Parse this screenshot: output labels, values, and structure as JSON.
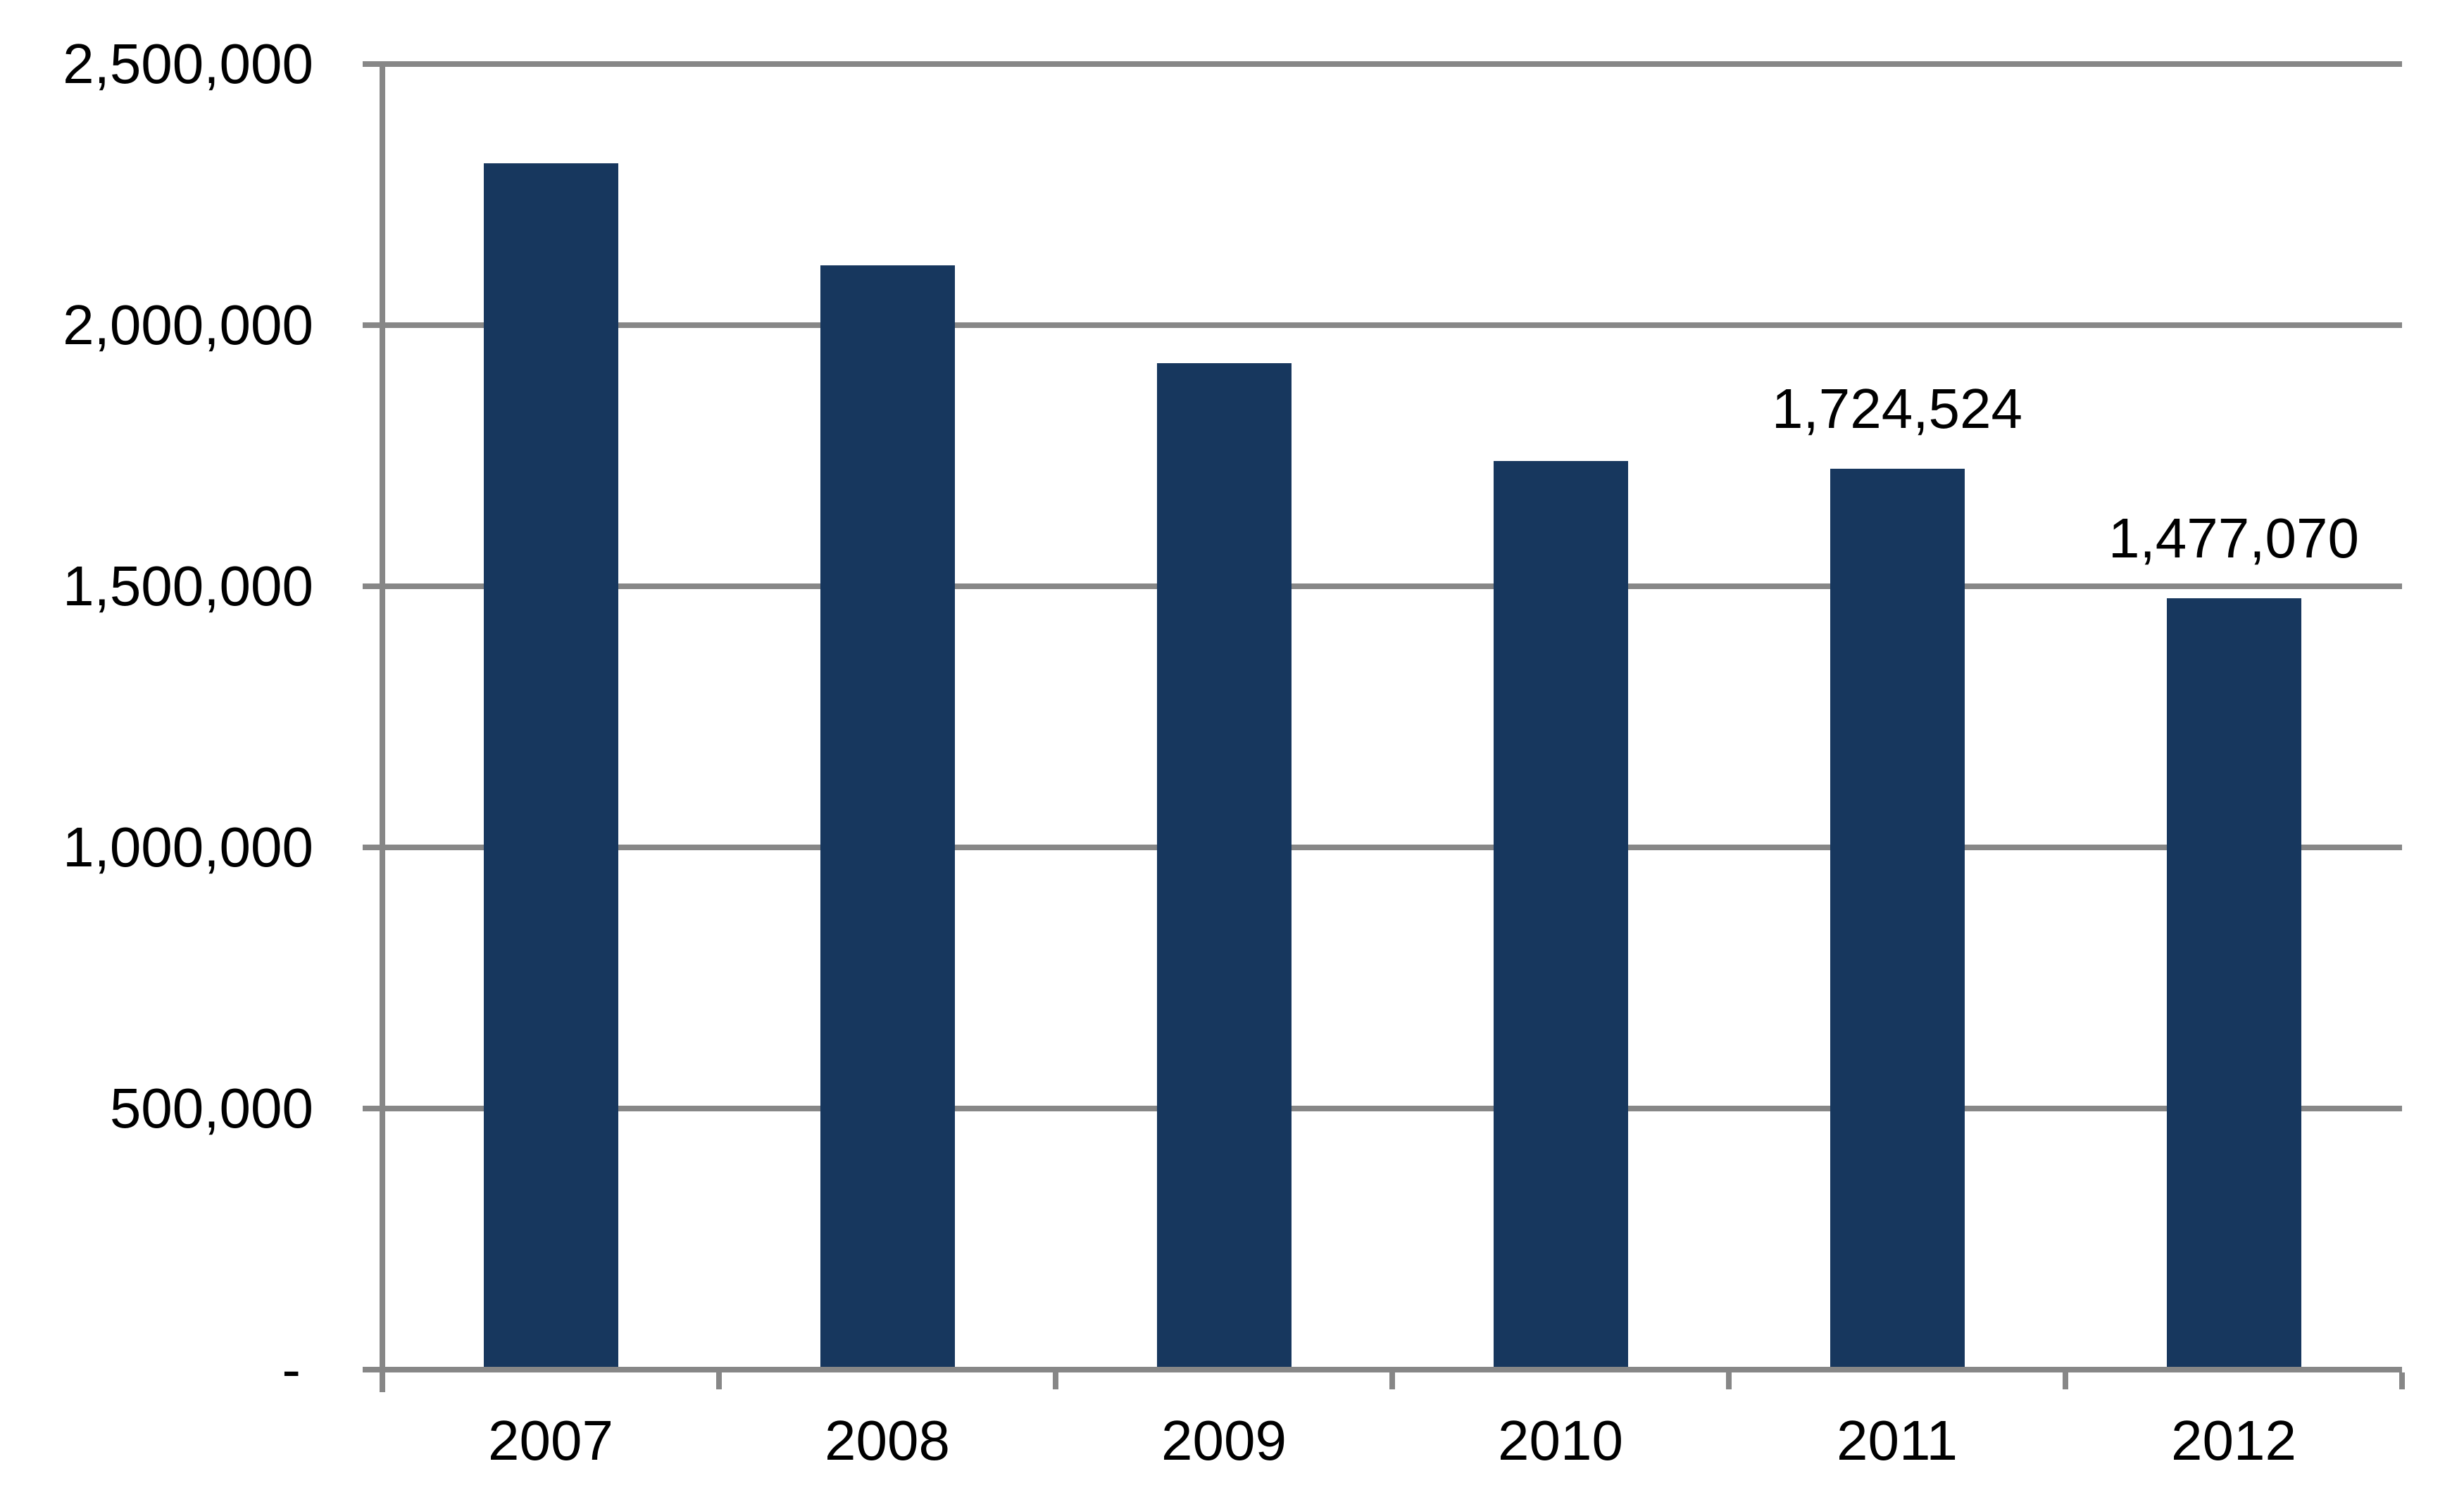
{
  "chart_data": {
    "type": "bar",
    "title": "",
    "xlabel": "",
    "ylabel": "",
    "categories": [
      "2007",
      "2008",
      "2009",
      "2010",
      "2011",
      "2012"
    ],
    "series": [
      {
        "name": "",
        "values": [
          2310000,
          2115000,
          1927000,
          1740000,
          1724524,
          1477070
        ]
      }
    ],
    "data_labels": [
      null,
      null,
      null,
      null,
      "1,724,524",
      "1,477,070"
    ],
    "ylim": [
      0,
      2500000
    ],
    "ytick_step": 500000,
    "ytick_labels": [
      "-",
      "500,000",
      "1,000,000",
      "1,500,000",
      "2,000,000",
      "2,500,000"
    ],
    "grid": true,
    "legend": false,
    "colors": {
      "bar": "#17375E",
      "axis": "#878787",
      "gridline": "#878787",
      "text": "#000000",
      "background": "#FFFFFF"
    }
  }
}
